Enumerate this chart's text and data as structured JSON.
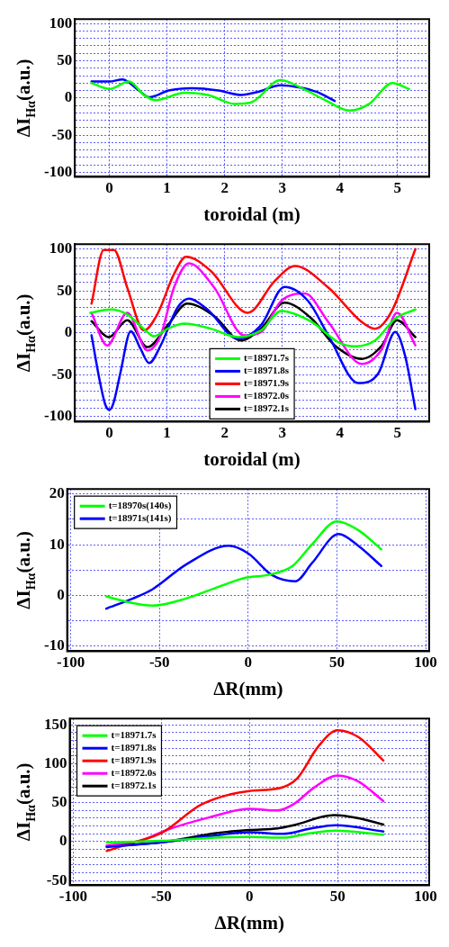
{
  "chart_data": [
    {
      "type": "line",
      "xlabel": "toroidal (m)",
      "ylabel": "ΔI$_{Hα}$(a.u.)",
      "xlim": [
        -0.6,
        5.55
      ],
      "xticks": [
        0,
        1,
        2,
        3,
        4,
        5
      ],
      "ylim": [
        -106,
        106
      ],
      "yticks": [
        {
          "value": -100,
          "label": "-100"
        },
        {
          "value": -90,
          "label": null
        },
        {
          "value": -80,
          "label": null
        },
        {
          "value": -70,
          "label": null
        },
        {
          "value": -60,
          "label": null
        },
        {
          "value": -50,
          "label": "-50"
        },
        {
          "value": -40,
          "label": null
        },
        {
          "value": -30,
          "label": null
        },
        {
          "value": -20,
          "label": null
        },
        {
          "value": -10,
          "label": null
        },
        0,
        {
          "value": 10,
          "label": null
        },
        {
          "value": 20,
          "label": null
        },
        {
          "value": 30,
          "label": null
        },
        {
          "value": 40,
          "label": null
        },
        50,
        {
          "value": 60,
          "label": null
        },
        {
          "value": 70,
          "label": null
        },
        {
          "value": 80,
          "label": null
        },
        {
          "value": 90,
          "label": null
        },
        100
      ],
      "grid": true,
      "series": [
        {
          "color": "#00ff00",
          "x": [
            -0.31,
            0,
            0.34,
            0.6,
            0.8,
            1.31,
            1.71,
            2.17,
            2.46,
            2.97,
            3.37,
            3.77,
            4.17,
            4.51,
            4.91,
            5.2
          ],
          "values": [
            20,
            12,
            22,
            4,
            -3,
            7,
            4,
            -8,
            -6,
            24,
            12,
            -4,
            -17,
            -8,
            20,
            12
          ]
        },
        {
          "color": "#0000ff",
          "x": [
            -0.31,
            0,
            0.23,
            0.51,
            0.69,
            1.03,
            1.43,
            1.89,
            2.29,
            2.57,
            2.97,
            3.31,
            3.6,
            3.91
          ],
          "values": [
            22,
            22,
            25,
            10,
            1,
            10,
            13,
            10,
            4,
            8,
            17,
            14,
            8,
            -4
          ]
        }
      ]
    },
    {
      "type": "line",
      "xlabel": "toroidal (m)",
      "ylabel": "ΔI$_{Hα}$(a.u.)",
      "xlim": [
        -0.6,
        5.55
      ],
      "xticks": [
        0,
        1,
        2,
        3,
        4,
        5
      ],
      "ylim": [
        -106,
        106
      ],
      "yticks": [
        {
          "value": -100,
          "label": "-100"
        },
        {
          "value": -90,
          "label": null
        },
        {
          "value": -80,
          "label": null
        },
        {
          "value": -70,
          "label": null
        },
        {
          "value": -60,
          "label": null
        },
        {
          "value": -50,
          "label": "-50"
        },
        {
          "value": -40,
          "label": null
        },
        {
          "value": -30,
          "label": null
        },
        {
          "value": -20,
          "label": null
        },
        {
          "value": -10,
          "label": null
        },
        0,
        {
          "value": 10,
          "label": null
        },
        {
          "value": 20,
          "label": null
        },
        {
          "value": 30,
          "label": null
        },
        {
          "value": 40,
          "label": null
        },
        50,
        {
          "value": 60,
          "label": null
        },
        {
          "value": 70,
          "label": null
        },
        {
          "value": 80,
          "label": null
        },
        {
          "value": 90,
          "label": null
        },
        100
      ],
      "grid": true,
      "legend": "bottom",
      "series": [
        {
          "name": "t=18971.7s",
          "color": "#00ff00",
          "x": [
            -0.33,
            0.02,
            0.31,
            0.66,
            0.77,
            1.01,
            1.3,
            1.76,
            2.23,
            2.63,
            2.98,
            3.51,
            3.97,
            4.26,
            4.61,
            4.96,
            5.31
          ],
          "values": [
            24,
            28,
            22,
            1,
            -4,
            5,
            11,
            5,
            -5,
            3,
            26,
            13,
            -11,
            -16,
            -9,
            17,
            28
          ]
        },
        {
          "name": "t=18971.8s",
          "color": "#0000ff",
          "x": [
            -0.31,
            -0.16,
            -0.07,
            0,
            0.07,
            0.19,
            0.37,
            0.54,
            0.69,
            0.89,
            1.18,
            1.38,
            1.7,
            2.23,
            2.63,
            3.04,
            3.45,
            3.8,
            4.32,
            4.67,
            4.96,
            5.13,
            5.31
          ],
          "values": [
            -3,
            -60,
            -86,
            -92,
            -84,
            -48,
            2,
            -19,
            -36,
            -15,
            30,
            41,
            28,
            -7,
            9,
            55,
            38,
            -3,
            -60,
            -48,
            1,
            -27,
            -91
          ]
        },
        {
          "name": "t=18971.9s",
          "color": "#ff0000",
          "x": [
            -0.31,
            -0.1,
            0.08,
            0.31,
            0.6,
            0.83,
            1.12,
            1.33,
            1.76,
            2.4,
            2.87,
            3.22,
            3.8,
            4.38,
            4.61,
            4.9,
            5.31
          ],
          "values": [
            35,
            99,
            99,
            54,
            3,
            22,
            70,
            91,
            74,
            24,
            62,
            80,
            54,
            13,
            5,
            26,
            100
          ]
        },
        {
          "name": "t=18972.0s",
          "color": "#ff00ff",
          "x": [
            -0.31,
            -0.04,
            0.31,
            0.66,
            0.89,
            1.12,
            1.38,
            1.82,
            2.34,
            2.63,
            2.98,
            3.39,
            3.8,
            4.38,
            4.73,
            4.99,
            5.31
          ],
          "values": [
            24,
            -15,
            24,
            -21,
            -3,
            54,
            83,
            54,
            -3,
            1,
            38,
            47,
            13,
            -37,
            -19,
            24,
            -15
          ]
        },
        {
          "name": "t=18972.1s",
          "color": "#000000",
          "x": [
            -0.31,
            -0.01,
            0.31,
            0.66,
            1.01,
            1.35,
            1.82,
            2.28,
            2.63,
            3.04,
            3.51,
            3.91,
            4.38,
            4.73,
            4.99,
            5.31
          ],
          "values": [
            14,
            -5,
            15,
            -17,
            9,
            35,
            20,
            -9,
            5,
            36,
            17,
            -15,
            -31,
            -15,
            15,
            -5
          ]
        }
      ]
    },
    {
      "type": "line",
      "xlabel": "ΔR(mm)",
      "ylabel": "ΔI$_{Hα}$(a.u.)",
      "xlim": [
        -102,
        102
      ],
      "xticks": [
        -100,
        -50,
        0,
        50,
        100
      ],
      "ylim": [
        -11,
        21
      ],
      "yticks": [
        -10,
        {
          "value": -5,
          "label": null
        },
        0,
        {
          "value": 5,
          "label": null
        },
        10,
        {
          "value": 15,
          "label": null
        },
        20
      ],
      "grid": true,
      "legend": "top left",
      "series": [
        {
          "name": "t=18970s(140s)",
          "color": "#00ff00",
          "x": [
            -80,
            -69,
            -54,
            -35,
            -16,
            -1.5,
            12,
            25,
            36,
            50,
            62,
            75
          ],
          "values": [
            -0.2,
            -1.2,
            -2,
            -0.6,
            1.8,
            3.5,
            4.1,
            5.8,
            10.1,
            14.6,
            12.9,
            9.1
          ]
        },
        {
          "name": "t=18971s(141s)",
          "color": "#0000ff",
          "x": [
            -80,
            -65,
            -54,
            -35,
            -11,
            0,
            13.5,
            26.6,
            36,
            51,
            62,
            75
          ],
          "values": [
            -2.6,
            -0.6,
            1.2,
            6.1,
            9.8,
            8.3,
            4,
            2.8,
            6.4,
            12.1,
            9.8,
            5.8
          ]
        }
      ]
    },
    {
      "type": "line",
      "xlabel": "ΔR(mm)",
      "ylabel": "ΔI$_{Hα}$(a.u.)",
      "xlim": [
        -102,
        102
      ],
      "xticks": [
        -100,
        -50,
        0,
        50,
        100
      ],
      "ylim": [
        -56,
        158
      ],
      "yticks": [
        -50,
        {
          "value": -40,
          "label": null
        },
        {
          "value": -30,
          "label": null
        },
        {
          "value": -20,
          "label": null
        },
        {
          "value": -10,
          "label": null
        },
        0,
        {
          "value": 10,
          "label": null
        },
        {
          "value": 20,
          "label": null
        },
        {
          "value": 30,
          "label": null
        },
        {
          "value": 40,
          "label": null
        },
        50,
        {
          "value": 60,
          "label": null
        },
        {
          "value": 70,
          "label": null
        },
        {
          "value": 80,
          "label": null
        },
        {
          "value": 90,
          "label": null
        },
        100,
        {
          "value": 110,
          "label": null
        },
        {
          "value": 120,
          "label": null
        },
        {
          "value": 130,
          "label": null
        },
        {
          "value": 140,
          "label": null
        },
        150
      ],
      "grid": true,
      "legend": "top left",
      "series": [
        {
          "name": "t=18971.7s",
          "color": "#00ff00",
          "x": [
            -81,
            -50,
            -19,
            0,
            19,
            35,
            49,
            76
          ],
          "values": [
            -1,
            1,
            5,
            6,
            5,
            11,
            14,
            9
          ]
        },
        {
          "name": "t=18971.8s",
          "color": "#0000ff",
          "x": [
            -81,
            -50,
            -19,
            0,
            19,
            35,
            49,
            76
          ],
          "values": [
            -7,
            -1,
            8,
            12,
            10,
            17,
            21,
            13
          ]
        },
        {
          "name": "t=18971.9s",
          "color": "#ff0000",
          "x": [
            -81,
            -66,
            -50,
            -27,
            0,
            16,
            27,
            39,
            50,
            62,
            76
          ],
          "values": [
            -12,
            -1,
            11,
            48,
            65,
            68,
            81,
            122,
            143,
            134,
            104
          ]
        },
        {
          "name": "t=18972.0s",
          "color": "#ff00ff",
          "x": [
            -81,
            -62,
            -47,
            -23,
            0,
            16,
            25,
            37,
            50,
            62,
            76
          ],
          "values": [
            -5,
            1,
            15,
            31,
            42,
            40,
            48,
            70,
            85,
            77,
            52
          ]
        },
        {
          "name": "t=18972.1s",
          "color": "#000000",
          "x": [
            -81,
            -50,
            -19,
            0,
            16,
            25,
            48,
            62,
            76
          ],
          "values": [
            -6,
            -1,
            11,
            15,
            17,
            21,
            34,
            30,
            22
          ]
        }
      ]
    }
  ]
}
